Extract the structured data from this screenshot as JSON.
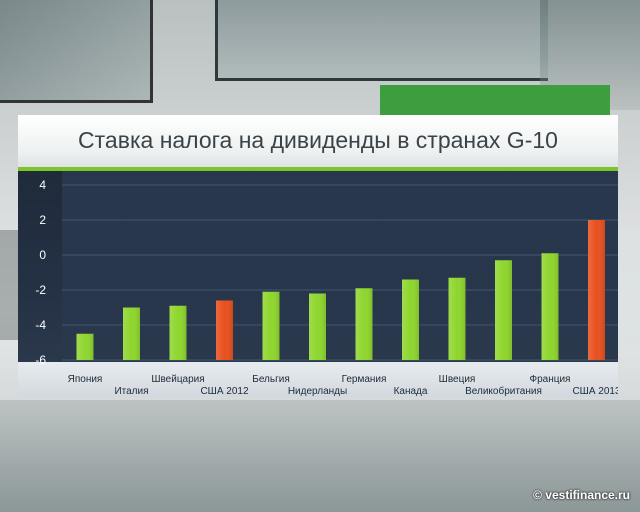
{
  "watermark": "© vestifinance.ru",
  "colors": {
    "bar_default": "#8fd62e",
    "bar_highlight": "#e8501e",
    "panel_bg": "#243044",
    "accent_line": "#7bc62d"
  },
  "chart_data": {
    "type": "bar",
    "title": "Ставка налога на дивиденды в странах G-10",
    "xlabel": "",
    "ylabel": "",
    "ylim": [
      -6,
      4
    ],
    "yticks": [
      "4",
      "2",
      "0",
      "-2",
      "-4",
      "-6"
    ],
    "grid": true,
    "categories": [
      "Япония",
      "Италия",
      "Швейцария",
      "США 2012",
      "Бельгия",
      "Нидерланды",
      "Германия",
      "Канада",
      "Швеция",
      "Великобритания",
      "Франция",
      "США 2013"
    ],
    "values": [
      -4.5,
      -3.0,
      -2.9,
      -2.6,
      -2.1,
      -2.2,
      -1.9,
      -1.4,
      -1.3,
      -0.3,
      0.1,
      2.0
    ],
    "highlight": [
      "США 2012",
      "США 2013"
    ]
  }
}
